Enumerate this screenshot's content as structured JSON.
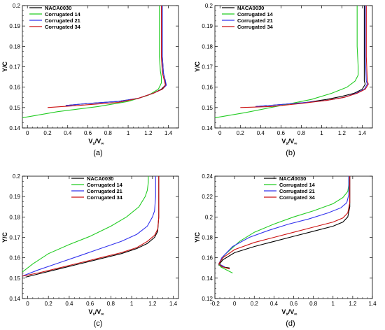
{
  "colors": {
    "NACA0030": "#000000",
    "Corrugated 14": "#22cc22",
    "Corrugated 21": "#3333ee",
    "Corrugated 34": "#cc1111"
  },
  "chart_data": [
    {
      "type": "line",
      "caption": "(a)",
      "xlabel": "V",
      "xlabel_sub": "x",
      "xlabel_den": "V",
      "xlabel_den_sub": "∞",
      "ylabel": "Y/C",
      "xlim": [
        -0.05,
        1.5
      ],
      "ylim": [
        0.14,
        0.2
      ],
      "xticks": [
        0,
        0.2,
        0.4,
        0.6,
        0.8,
        1,
        1.2,
        1.4
      ],
      "yticks": [
        0.14,
        0.15,
        0.16,
        0.17,
        0.18,
        0.19,
        0.2
      ],
      "legend": {
        "position": "top-left"
      },
      "series": [
        {
          "name": "NACA0030",
          "x": [
            0.38,
            0.6,
            0.9,
            1.1,
            1.25,
            1.33,
            1.37,
            1.37,
            1.35,
            1.34,
            1.34,
            1.34
          ],
          "y": [
            0.151,
            0.152,
            0.153,
            0.1545,
            0.157,
            0.159,
            0.161,
            0.163,
            0.167,
            0.175,
            0.19,
            0.2
          ]
        },
        {
          "name": "Corrugated 14",
          "x": [
            -0.05,
            0.3,
            0.7,
            1.0,
            1.2,
            1.3,
            1.33,
            1.33,
            1.32,
            1.31,
            1.31,
            1.31
          ],
          "y": [
            0.145,
            0.148,
            0.1505,
            0.153,
            0.156,
            0.159,
            0.162,
            0.165,
            0.168,
            0.175,
            0.19,
            0.2
          ]
        },
        {
          "name": "Corrugated 21",
          "x": [
            0.38,
            0.6,
            0.9,
            1.1,
            1.25,
            1.34,
            1.38,
            1.37,
            1.35,
            1.34,
            1.34,
            1.34
          ],
          "y": [
            0.151,
            0.152,
            0.153,
            0.1545,
            0.157,
            0.159,
            0.161,
            0.163,
            0.167,
            0.175,
            0.19,
            0.2
          ]
        },
        {
          "name": "Corrugated 34",
          "x": [
            0.2,
            0.5,
            0.9,
            1.1,
            1.25,
            1.34,
            1.37,
            1.36,
            1.34,
            1.33,
            1.33,
            1.33
          ],
          "y": [
            0.15,
            0.151,
            0.1525,
            0.1545,
            0.157,
            0.159,
            0.161,
            0.163,
            0.167,
            0.175,
            0.19,
            0.2
          ]
        }
      ]
    },
    {
      "type": "line",
      "caption": "(b)",
      "xlabel": "V",
      "xlabel_sub": "x",
      "xlabel_den": "V",
      "xlabel_den_sub": "∞",
      "ylabel": "Y/C",
      "xlim": [
        -0.05,
        1.5
      ],
      "ylim": [
        0.14,
        0.2
      ],
      "xticks": [
        0,
        0.2,
        0.4,
        0.6,
        0.8,
        1,
        1.2,
        1.4
      ],
      "yticks": [
        0.14,
        0.15,
        0.16,
        0.17,
        0.18,
        0.19,
        0.2
      ],
      "legend": {
        "position": "top-left"
      },
      "series": [
        {
          "name": "NACA0030",
          "x": [
            0.35,
            0.6,
            0.85,
            1.05,
            1.2,
            1.32,
            1.4,
            1.43,
            1.42,
            1.42,
            1.42,
            1.42
          ],
          "y": [
            0.1505,
            0.1515,
            0.1525,
            0.154,
            0.1555,
            0.157,
            0.159,
            0.1615,
            0.163,
            0.175,
            0.19,
            0.2
          ]
        },
        {
          "name": "Corrugated 14",
          "x": [
            -0.05,
            0.25,
            0.6,
            0.9,
            1.1,
            1.25,
            1.33,
            1.36,
            1.36,
            1.35,
            1.35,
            1.35
          ],
          "y": [
            0.145,
            0.1475,
            0.151,
            0.154,
            0.157,
            0.16,
            0.163,
            0.166,
            0.17,
            0.18,
            0.19,
            0.2
          ]
        },
        {
          "name": "Corrugated 21",
          "x": [
            0.35,
            0.6,
            0.85,
            1.05,
            1.22,
            1.34,
            1.42,
            1.45,
            1.44,
            1.43,
            1.43,
            1.43
          ],
          "y": [
            0.1505,
            0.1515,
            0.1525,
            0.1535,
            0.155,
            0.157,
            0.159,
            0.1615,
            0.163,
            0.175,
            0.19,
            0.2
          ]
        },
        {
          "name": "Corrugated 34",
          "x": [
            0.2,
            0.5,
            0.8,
            1.05,
            1.22,
            1.35,
            1.43,
            1.46,
            1.45,
            1.44,
            1.44,
            1.44
          ],
          "y": [
            0.15,
            0.1505,
            0.152,
            0.1535,
            0.155,
            0.157,
            0.159,
            0.1615,
            0.163,
            0.175,
            0.19,
            0.2
          ]
        }
      ]
    },
    {
      "type": "line",
      "caption": "(c)",
      "xlabel": "V",
      "xlabel_sub": "x",
      "xlabel_den": "V",
      "xlabel_den_sub": "∞",
      "ylabel": "Y/C",
      "xlim": [
        -0.05,
        1.45
      ],
      "ylim": [
        0.14,
        0.2
      ],
      "xticks": [
        0,
        0.2,
        0.4,
        0.6,
        0.8,
        1,
        1.2,
        1.4
      ],
      "yticks": [
        0.14,
        0.15,
        0.16,
        0.17,
        0.18,
        0.19,
        0.2
      ],
      "legend": {
        "position": "top-right"
      },
      "series": [
        {
          "name": "NACA0030",
          "x": [
            -0.02,
            0.1,
            0.3,
            0.5,
            0.7,
            0.9,
            1.05,
            1.15,
            1.22,
            1.25,
            1.26,
            1.26,
            1.26
          ],
          "y": [
            0.1505,
            0.152,
            0.1545,
            0.157,
            0.1595,
            0.162,
            0.1645,
            0.167,
            0.17,
            0.173,
            0.18,
            0.19,
            0.2
          ]
        },
        {
          "name": "Corrugated 14",
          "x": [
            -0.05,
            0.05,
            0.2,
            0.4,
            0.6,
            0.8,
            0.95,
            1.07,
            1.13,
            1.15,
            1.16,
            1.16
          ],
          "y": [
            0.153,
            0.157,
            0.162,
            0.1665,
            0.1705,
            0.1755,
            0.18,
            0.185,
            0.19,
            0.193,
            0.197,
            0.2
          ]
        },
        {
          "name": "Corrugated 21",
          "x": [
            -0.05,
            0.1,
            0.3,
            0.5,
            0.7,
            0.9,
            1.05,
            1.15,
            1.2,
            1.22,
            1.23,
            1.23
          ],
          "y": [
            0.151,
            0.154,
            0.1575,
            0.161,
            0.1645,
            0.168,
            0.1715,
            0.1755,
            0.18,
            0.183,
            0.19,
            0.2
          ]
        },
        {
          "name": "Corrugated 34",
          "x": [
            -0.05,
            0.1,
            0.3,
            0.5,
            0.7,
            0.9,
            1.05,
            1.15,
            1.22,
            1.25,
            1.26,
            1.26,
            1.26
          ],
          "y": [
            0.151,
            0.1525,
            0.155,
            0.1575,
            0.16,
            0.1625,
            0.165,
            0.168,
            0.171,
            0.174,
            0.18,
            0.19,
            0.2
          ]
        }
      ]
    },
    {
      "type": "line",
      "caption": "(d)",
      "xlabel": "V",
      "xlabel_sub": "x",
      "xlabel_den": "V",
      "xlabel_den_sub": "∞",
      "ylabel": "Y/C",
      "xlim": [
        -0.2,
        1.4
      ],
      "ylim": [
        0.12,
        0.24
      ],
      "xticks": [
        -0.2,
        0,
        0.2,
        0.4,
        0.6,
        0.8,
        1,
        1.2,
        1.4
      ],
      "yticks": [
        0.12,
        0.14,
        0.16,
        0.18,
        0.2,
        0.22,
        0.24
      ],
      "legend": {
        "position": "top-right"
      },
      "series": [
        {
          "name": "NACA0030",
          "x": [
            -0.05,
            -0.12,
            -0.16,
            -0.12,
            0.0,
            0.2,
            0.4,
            0.6,
            0.8,
            1.0,
            1.1,
            1.15,
            1.17,
            1.17,
            1.17
          ],
          "y": [
            0.15,
            0.151,
            0.153,
            0.158,
            0.165,
            0.171,
            0.176,
            0.181,
            0.186,
            0.191,
            0.195,
            0.2,
            0.21,
            0.23,
            0.24
          ]
        },
        {
          "name": "Corrugated 14",
          "x": [
            -0.02,
            -0.08,
            -0.14,
            -0.16,
            -0.1,
            0.05,
            0.2,
            0.4,
            0.6,
            0.8,
            1.0,
            1.1,
            1.15,
            1.16,
            1.16
          ],
          "y": [
            0.145,
            0.148,
            0.151,
            0.154,
            0.163,
            0.176,
            0.185,
            0.193,
            0.2,
            0.206,
            0.213,
            0.219,
            0.225,
            0.232,
            0.24
          ]
        },
        {
          "name": "Corrugated 21",
          "x": [
            -0.1,
            -0.16,
            -0.13,
            -0.02,
            0.15,
            0.35,
            0.55,
            0.75,
            0.95,
            1.08,
            1.14,
            1.16,
            1.16,
            1.16
          ],
          "y": [
            0.151,
            0.154,
            0.16,
            0.171,
            0.18,
            0.187,
            0.193,
            0.198,
            0.204,
            0.209,
            0.214,
            0.222,
            0.23,
            0.24
          ]
        },
        {
          "name": "Corrugated 34",
          "x": [
            -0.05,
            -0.12,
            -0.16,
            -0.12,
            0.0,
            0.2,
            0.4,
            0.6,
            0.8,
            1.0,
            1.1,
            1.15,
            1.17,
            1.17,
            1.17
          ],
          "y": [
            0.149,
            0.151,
            0.154,
            0.16,
            0.168,
            0.175,
            0.18,
            0.185,
            0.19,
            0.195,
            0.199,
            0.204,
            0.214,
            0.23,
            0.24
          ]
        }
      ]
    }
  ]
}
